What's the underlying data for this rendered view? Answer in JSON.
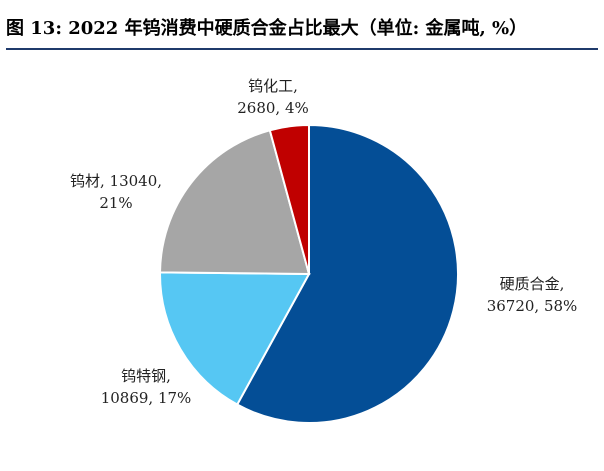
{
  "figure": {
    "title": "图 13: 2022 年钨消费中硬质合金占比最大（单位: 金属吨, %）"
  },
  "chart_data": {
    "type": "pie",
    "title": "",
    "start_angle_deg": 0,
    "direction": "clockwise",
    "legend": "none",
    "slices": [
      {
        "name": "硬质合金",
        "value": 36720,
        "percent": 58,
        "color": "#044E96",
        "label_lines": [
          "硬质合金,",
          "36720, 58%"
        ]
      },
      {
        "name": "钨特钢",
        "value": 10869,
        "percent": 17,
        "color": "#56C7F3",
        "label_lines": [
          "钨特钢,",
          "10869, 17%"
        ]
      },
      {
        "name": "钨材",
        "value": 13040,
        "percent": 21,
        "color": "#A6A6A6",
        "label_lines": [
          "钨材, 13040,",
          "21%"
        ]
      },
      {
        "name": "钨化工",
        "value": 2680,
        "percent": 4,
        "color": "#C00000",
        "label_lines": [
          "钨化工,",
          "2680, 4%"
        ]
      }
    ]
  }
}
